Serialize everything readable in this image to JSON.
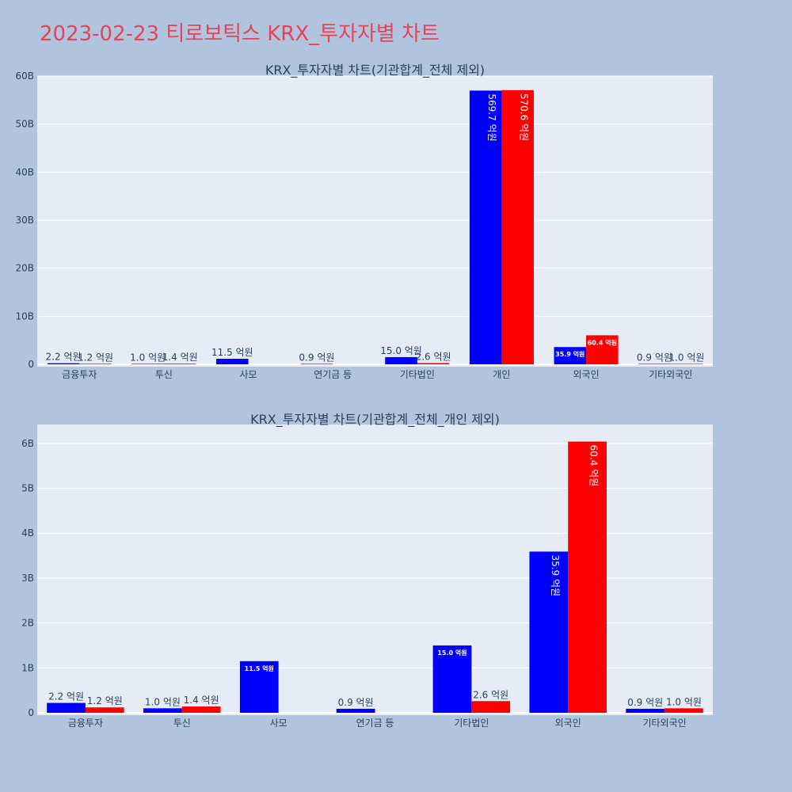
{
  "page_title": "2023-02-23 티로보틱스 KRX_투자자별 차트",
  "colors": {
    "background": "#b0c4de",
    "plot_bg": "#e5ecf6",
    "title": "#e8425a",
    "sell": "#0000ff",
    "buy": "#ff0000",
    "text": "#2a3f5f"
  },
  "chart_data": [
    {
      "type": "bar",
      "title": "KRX_투자자별 차트(기관합계_전체 제외)",
      "categories": [
        "금융투자",
        "투신",
        "사모",
        "연기금 등",
        "기타법인",
        "개인",
        "외국인",
        "기타외국인"
      ],
      "ylim": [
        0,
        60
      ],
      "yticks": [
        0,
        10,
        20,
        30,
        40,
        50,
        60
      ],
      "ytick_labels": [
        "0",
        "10B",
        "20B",
        "30B",
        "40B",
        "50B",
        "60B"
      ],
      "grid": true,
      "legend": "none",
      "series": [
        {
          "color": "#0000ff",
          "values": [
            0.22,
            0.1,
            1.15,
            0.09,
            1.5,
            56.97,
            3.59,
            0.09
          ],
          "labels": [
            "2.2 억원",
            "1.0 억원",
            "11.5 억원",
            "0.9 억원",
            "15.0 억원",
            "569.7 억원",
            "35.9 억원",
            "0.9 억원"
          ]
        },
        {
          "color": "#ff0000",
          "values": [
            0.12,
            0.14,
            0,
            0,
            0.26,
            57.06,
            6.04,
            0.1
          ],
          "labels": [
            "1.2 억원",
            "1.4 억원",
            "",
            "",
            "2.6 억원",
            "570.6 억원",
            "60.4 억원",
            "1.0 억원"
          ]
        }
      ]
    },
    {
      "type": "bar",
      "title": "KRX_투자자별 차트(기관합계_전체_개인 제외)",
      "categories": [
        "금융투자",
        "투신",
        "사모",
        "연기금 등",
        "기타법인",
        "외국인",
        "기타외국인"
      ],
      "ylim": [
        0,
        6.42
      ],
      "yticks": [
        0,
        1,
        2,
        3,
        4,
        5,
        6
      ],
      "ytick_labels": [
        "0",
        "1B",
        "2B",
        "3B",
        "4B",
        "5B",
        "6B"
      ],
      "grid": true,
      "legend": "none",
      "series": [
        {
          "color": "#0000ff",
          "values": [
            0.22,
            0.1,
            1.15,
            0.09,
            1.5,
            3.59,
            0.09
          ],
          "labels": [
            "2.2 억원",
            "1.0 억원",
            "11.5 억원",
            "0.9 억원",
            "15.0 억원",
            "35.9 억원",
            "0.9 억원"
          ]
        },
        {
          "color": "#ff0000",
          "values": [
            0.12,
            0.14,
            0,
            0,
            0.26,
            6.04,
            0.1
          ],
          "labels": [
            "1.2 억원",
            "1.4 억원",
            "",
            "",
            "2.6 억원",
            "60.4 억원",
            "1.0 억원"
          ]
        }
      ]
    }
  ]
}
